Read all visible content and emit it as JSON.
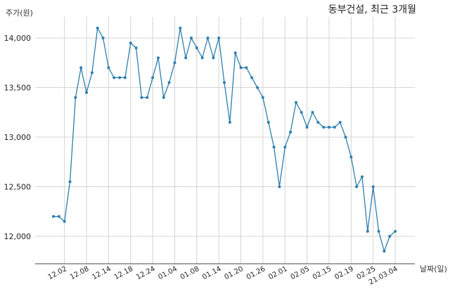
{
  "chart_data": {
    "type": "line",
    "title": "동부건설, 최근 3개월",
    "ylabel": "주가(원)",
    "xlabel": "날짜(일)",
    "ylim": [
      11750,
      14250
    ],
    "y_ticks": [
      12000,
      12500,
      13000,
      13500,
      14000
    ],
    "y_tick_labels": [
      "12,000",
      "12,500",
      "13,000",
      "13,500",
      "14,000"
    ],
    "x_tick_labels": [
      "12.02",
      "12.08",
      "12.14",
      "12.18",
      "12.24",
      "01.04",
      "01.08",
      "01.14",
      "01.20",
      "01.26",
      "02.01",
      "02.05",
      "02.15",
      "02.19",
      "02.25",
      "21.03.04"
    ],
    "x_tick_index": [
      2,
      6,
      10,
      14,
      18,
      22,
      26,
      30,
      34,
      38,
      42,
      46,
      50,
      54,
      58,
      62
    ],
    "grid": true,
    "line_color": "#2e7fae",
    "series": [
      {
        "name": "",
        "values": [
          12200,
          12200,
          12150,
          12550,
          13400,
          13700,
          13450,
          13650,
          14100,
          14000,
          13700,
          13600,
          13600,
          13600,
          13950,
          13900,
          13400,
          13400,
          13600,
          13800,
          13400,
          13550,
          13750,
          14100,
          13800,
          14000,
          13900,
          13800,
          14000,
          13800,
          14000,
          13550,
          13150,
          13850,
          13700,
          13700,
          13600,
          13500,
          13400,
          13150,
          12900,
          12500,
          12900,
          13050,
          13350,
          13250,
          13100,
          13250,
          13150,
          13100,
          13100,
          13100,
          13150,
          13000,
          12800,
          12500,
          12600,
          12050,
          12500,
          12050,
          11850,
          12000,
          12050
        ]
      }
    ]
  }
}
